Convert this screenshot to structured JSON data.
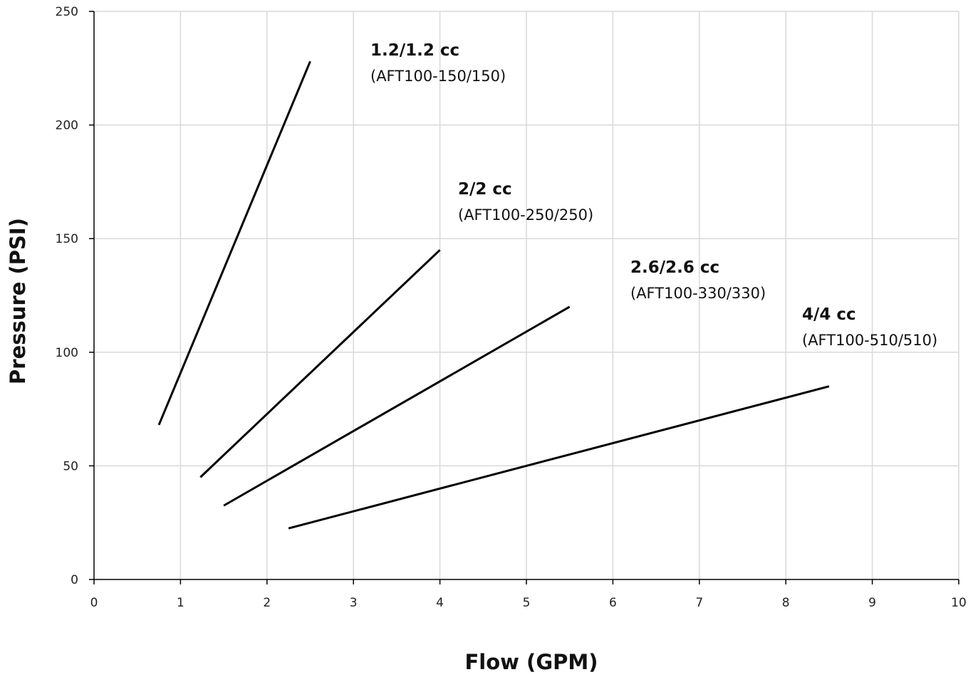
{
  "chart_data": {
    "type": "line",
    "title": "",
    "xlabel": "Flow (GPM)",
    "ylabel": "Pressure (PSI)",
    "xlim": [
      0,
      10
    ],
    "ylim": [
      0,
      250
    ],
    "x_ticks": [
      0,
      1,
      2,
      3,
      4,
      5,
      6,
      7,
      8,
      9,
      10
    ],
    "y_ticks": [
      0,
      50,
      100,
      150,
      200,
      250
    ],
    "grid": true,
    "legend": "none",
    "series": [
      {
        "name": "1.2/1.2 cc",
        "model": "(AFT100-150/150)",
        "x": [
          0.75,
          2.5
        ],
        "y": [
          68,
          228
        ]
      },
      {
        "name": "2/2 cc",
        "model": "(AFT100-250/250)",
        "x": [
          1.23,
          4.0
        ],
        "y": [
          45,
          145
        ]
      },
      {
        "name": "2.6/2.6 cc",
        "model": "(AFT100-330/330)",
        "x": [
          1.5,
          5.5
        ],
        "y": [
          32.5,
          120
        ]
      },
      {
        "name": "4/4 cc",
        "model": "(AFT100-510/510)",
        "x": [
          2.25,
          8.5
        ],
        "y": [
          22.5,
          85
        ]
      }
    ]
  }
}
